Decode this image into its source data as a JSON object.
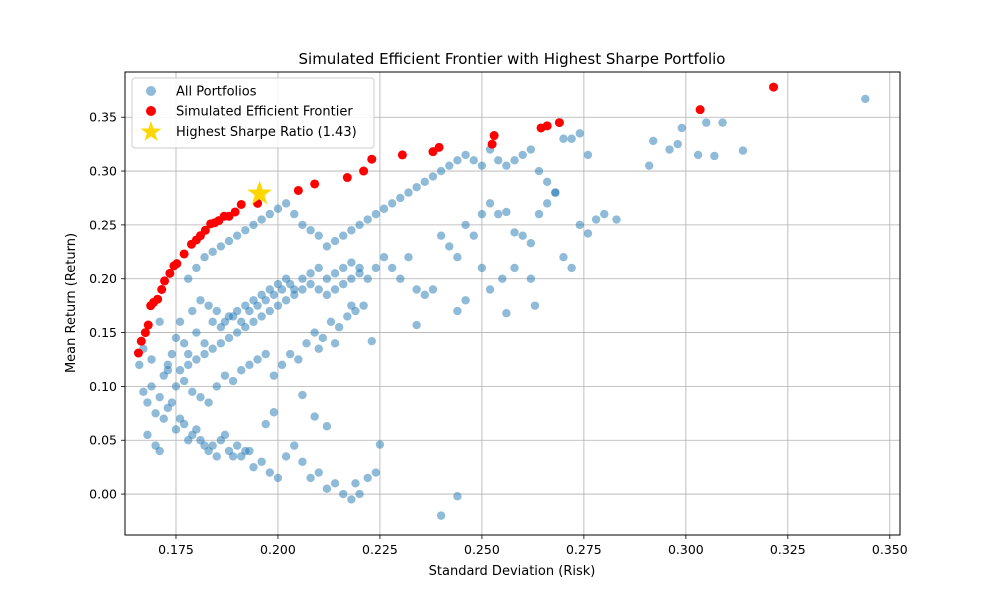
{
  "chart_data": {
    "type": "scatter",
    "title": "Simulated Efficient Frontier with Highest Sharpe Portfolio",
    "xlabel": "Standard Deviation (Risk)",
    "ylabel": "Mean Return (Return)",
    "xlim": [
      0.1625,
      0.3525
    ],
    "ylim": [
      -0.038,
      0.392
    ],
    "x_ticks": [
      0.175,
      0.2,
      0.225,
      0.25,
      0.275,
      0.3,
      0.325,
      0.35
    ],
    "x_tick_labels": [
      "0.175",
      "0.200",
      "0.225",
      "0.250",
      "0.275",
      "0.300",
      "0.325",
      "0.350"
    ],
    "y_ticks": [
      0.0,
      0.05,
      0.1,
      0.15,
      0.2,
      0.25,
      0.3,
      0.35
    ],
    "y_tick_labels": [
      "0.00",
      "0.05",
      "0.10",
      "0.15",
      "0.20",
      "0.25",
      "0.30",
      "0.35"
    ],
    "grid": true,
    "legend_position": "upper-left",
    "colors": {
      "all_portfolios": "#1f77b4",
      "frontier": "#ff0000",
      "max_sharpe": "#ffd700",
      "grid": "#b0b0b0"
    },
    "series": [
      {
        "name": "All Portfolios",
        "marker": "circle",
        "alpha": 0.5,
        "points": [
          [
            0.167,
            0.135
          ],
          [
            0.169,
            0.125
          ],
          [
            0.171,
            0.16
          ],
          [
            0.173,
            0.12
          ],
          [
            0.175,
            0.145
          ],
          [
            0.172,
            0.11
          ],
          [
            0.178,
            0.13
          ],
          [
            0.18,
            0.15
          ],
          [
            0.182,
            0.14
          ],
          [
            0.184,
            0.16
          ],
          [
            0.186,
            0.155
          ],
          [
            0.188,
            0.165
          ],
          [
            0.19,
            0.17
          ],
          [
            0.192,
            0.175
          ],
          [
            0.194,
            0.18
          ],
          [
            0.196,
            0.185
          ],
          [
            0.198,
            0.19
          ],
          [
            0.2,
            0.195
          ],
          [
            0.202,
            0.2
          ],
          [
            0.204,
            0.19
          ],
          [
            0.206,
            0.2
          ],
          [
            0.208,
            0.205
          ],
          [
            0.21,
            0.21
          ],
          [
            0.212,
            0.2
          ],
          [
            0.214,
            0.205
          ],
          [
            0.216,
            0.21
          ],
          [
            0.218,
            0.215
          ],
          [
            0.22,
            0.21
          ],
          [
            0.179,
            0.17
          ],
          [
            0.181,
            0.18
          ],
          [
            0.183,
            0.175
          ],
          [
            0.185,
            0.17
          ],
          [
            0.187,
            0.16
          ],
          [
            0.189,
            0.165
          ],
          [
            0.191,
            0.16
          ],
          [
            0.193,
            0.17
          ],
          [
            0.195,
            0.175
          ],
          [
            0.197,
            0.18
          ],
          [
            0.199,
            0.185
          ],
          [
            0.201,
            0.19
          ],
          [
            0.203,
            0.195
          ],
          [
            0.176,
            0.16
          ],
          [
            0.177,
            0.14
          ],
          [
            0.174,
            0.13
          ],
          [
            0.176,
            0.115
          ],
          [
            0.178,
            0.12
          ],
          [
            0.18,
            0.125
          ],
          [
            0.182,
            0.13
          ],
          [
            0.184,
            0.135
          ],
          [
            0.186,
            0.14
          ],
          [
            0.188,
            0.145
          ],
          [
            0.19,
            0.15
          ],
          [
            0.192,
            0.155
          ],
          [
            0.194,
            0.16
          ],
          [
            0.196,
            0.165
          ],
          [
            0.198,
            0.17
          ],
          [
            0.2,
            0.175
          ],
          [
            0.202,
            0.18
          ],
          [
            0.204,
            0.185
          ],
          [
            0.206,
            0.19
          ],
          [
            0.208,
            0.195
          ],
          [
            0.21,
            0.19
          ],
          [
            0.212,
            0.185
          ],
          [
            0.214,
            0.19
          ],
          [
            0.216,
            0.195
          ],
          [
            0.218,
            0.2
          ],
          [
            0.22,
            0.205
          ],
          [
            0.222,
            0.2
          ],
          [
            0.224,
            0.21
          ],
          [
            0.178,
            0.2
          ],
          [
            0.18,
            0.21
          ],
          [
            0.182,
            0.22
          ],
          [
            0.184,
            0.225
          ],
          [
            0.186,
            0.23
          ],
          [
            0.188,
            0.235
          ],
          [
            0.19,
            0.24
          ],
          [
            0.192,
            0.245
          ],
          [
            0.194,
            0.25
          ],
          [
            0.196,
            0.255
          ],
          [
            0.198,
            0.26
          ],
          [
            0.2,
            0.265
          ],
          [
            0.202,
            0.27
          ],
          [
            0.204,
            0.26
          ],
          [
            0.206,
            0.25
          ],
          [
            0.208,
            0.245
          ],
          [
            0.21,
            0.24
          ],
          [
            0.212,
            0.23
          ],
          [
            0.214,
            0.235
          ],
          [
            0.216,
            0.24
          ],
          [
            0.218,
            0.245
          ],
          [
            0.22,
            0.25
          ],
          [
            0.222,
            0.255
          ],
          [
            0.224,
            0.26
          ],
          [
            0.226,
            0.265
          ],
          [
            0.228,
            0.27
          ],
          [
            0.23,
            0.275
          ],
          [
            0.232,
            0.28
          ],
          [
            0.234,
            0.285
          ],
          [
            0.236,
            0.29
          ],
          [
            0.238,
            0.295
          ],
          [
            0.24,
            0.3
          ],
          [
            0.242,
            0.305
          ],
          [
            0.244,
            0.31
          ],
          [
            0.246,
            0.315
          ],
          [
            0.248,
            0.31
          ],
          [
            0.25,
            0.305
          ],
          [
            0.252,
            0.32
          ],
          [
            0.254,
            0.31
          ],
          [
            0.256,
            0.305
          ],
          [
            0.258,
            0.31
          ],
          [
            0.26,
            0.315
          ],
          [
            0.262,
            0.32
          ],
          [
            0.264,
            0.3
          ],
          [
            0.266,
            0.29
          ],
          [
            0.268,
            0.28
          ],
          [
            0.27,
            0.33
          ],
          [
            0.272,
            0.33
          ],
          [
            0.274,
            0.335
          ],
          [
            0.276,
            0.315
          ],
          [
            0.278,
            0.255
          ],
          [
            0.28,
            0.26
          ],
          [
            0.283,
            0.255
          ],
          [
            0.291,
            0.305
          ],
          [
            0.292,
            0.328
          ],
          [
            0.296,
            0.32
          ],
          [
            0.298,
            0.325
          ],
          [
            0.299,
            0.34
          ],
          [
            0.303,
            0.315
          ],
          [
            0.305,
            0.345
          ],
          [
            0.307,
            0.314
          ],
          [
            0.309,
            0.345
          ],
          [
            0.314,
            0.319
          ],
          [
            0.344,
            0.367
          ],
          [
            0.226,
            0.22
          ],
          [
            0.228,
            0.21
          ],
          [
            0.23,
            0.2
          ],
          [
            0.232,
            0.22
          ],
          [
            0.234,
            0.19
          ],
          [
            0.236,
            0.185
          ],
          [
            0.238,
            0.19
          ],
          [
            0.24,
            0.24
          ],
          [
            0.242,
            0.23
          ],
          [
            0.244,
            0.22
          ],
          [
            0.246,
            0.25
          ],
          [
            0.248,
            0.24
          ],
          [
            0.25,
            0.26
          ],
          [
            0.252,
            0.27
          ],
          [
            0.254,
            0.26
          ],
          [
            0.256,
            0.262
          ],
          [
            0.258,
            0.243
          ],
          [
            0.26,
            0.24
          ],
          [
            0.262,
            0.233
          ],
          [
            0.264,
            0.26
          ],
          [
            0.266,
            0.27
          ],
          [
            0.268,
            0.28
          ],
          [
            0.27,
            0.22
          ],
          [
            0.272,
            0.21
          ],
          [
            0.274,
            0.25
          ],
          [
            0.276,
            0.242
          ],
          [
            0.244,
            0.17
          ],
          [
            0.246,
            0.18
          ],
          [
            0.25,
            0.21
          ],
          [
            0.252,
            0.19
          ],
          [
            0.255,
            0.2
          ],
          [
            0.258,
            0.21
          ],
          [
            0.262,
            0.2
          ],
          [
            0.263,
            0.175
          ],
          [
            0.256,
            0.168
          ],
          [
            0.234,
            0.157
          ],
          [
            0.223,
            0.142
          ],
          [
            0.218,
            0.175
          ],
          [
            0.214,
            0.14
          ],
          [
            0.21,
            0.135
          ],
          [
            0.166,
            0.12
          ],
          [
            0.167,
            0.095
          ],
          [
            0.168,
            0.085
          ],
          [
            0.169,
            0.1
          ],
          [
            0.17,
            0.075
          ],
          [
            0.171,
            0.09
          ],
          [
            0.172,
            0.07
          ],
          [
            0.173,
            0.08
          ],
          [
            0.174,
            0.085
          ],
          [
            0.175,
            0.06
          ],
          [
            0.176,
            0.07
          ],
          [
            0.177,
            0.065
          ],
          [
            0.178,
            0.05
          ],
          [
            0.179,
            0.055
          ],
          [
            0.18,
            0.06
          ],
          [
            0.181,
            0.05
          ],
          [
            0.182,
            0.045
          ],
          [
            0.183,
            0.04
          ],
          [
            0.184,
            0.045
          ],
          [
            0.185,
            0.035
          ],
          [
            0.186,
            0.05
          ],
          [
            0.187,
            0.055
          ],
          [
            0.188,
            0.04
          ],
          [
            0.189,
            0.035
          ],
          [
            0.19,
            0.045
          ],
          [
            0.191,
            0.035
          ],
          [
            0.192,
            0.04
          ],
          [
            0.193,
            0.04
          ],
          [
            0.194,
            0.025
          ],
          [
            0.196,
            0.03
          ],
          [
            0.198,
            0.02
          ],
          [
            0.2,
            0.015
          ],
          [
            0.202,
            0.035
          ],
          [
            0.204,
            0.045
          ],
          [
            0.206,
            0.03
          ],
          [
            0.208,
            0.015
          ],
          [
            0.21,
            0.02
          ],
          [
            0.212,
            0.005
          ],
          [
            0.214,
            0.01
          ],
          [
            0.216,
            0.0
          ],
          [
            0.218,
            -0.005
          ],
          [
            0.219,
            0.01
          ],
          [
            0.22,
            0.0
          ],
          [
            0.222,
            0.015
          ],
          [
            0.224,
            0.02
          ],
          [
            0.225,
            0.046
          ],
          [
            0.212,
            0.063
          ],
          [
            0.209,
            0.072
          ],
          [
            0.206,
            0.092
          ],
          [
            0.199,
            0.076
          ],
          [
            0.197,
            0.065
          ],
          [
            0.24,
            -0.02
          ],
          [
            0.244,
            -0.002
          ],
          [
            0.17,
            0.045
          ],
          [
            0.171,
            0.04
          ],
          [
            0.168,
            0.055
          ],
          [
            0.173,
            0.115
          ],
          [
            0.175,
            0.1
          ],
          [
            0.177,
            0.105
          ],
          [
            0.179,
            0.095
          ],
          [
            0.181,
            0.09
          ],
          [
            0.183,
            0.085
          ],
          [
            0.185,
            0.1
          ],
          [
            0.187,
            0.11
          ],
          [
            0.189,
            0.105
          ],
          [
            0.191,
            0.115
          ],
          [
            0.193,
            0.12
          ],
          [
            0.195,
            0.125
          ],
          [
            0.197,
            0.13
          ],
          [
            0.199,
            0.11
          ],
          [
            0.201,
            0.12
          ],
          [
            0.203,
            0.13
          ],
          [
            0.205,
            0.125
          ],
          [
            0.207,
            0.14
          ],
          [
            0.209,
            0.15
          ],
          [
            0.211,
            0.145
          ],
          [
            0.213,
            0.16
          ],
          [
            0.215,
            0.155
          ],
          [
            0.217,
            0.165
          ],
          [
            0.219,
            0.17
          ],
          [
            0.221,
            0.175
          ]
        ]
      },
      {
        "name": "Simulated Efficient Frontier",
        "marker": "circle",
        "points": [
          [
            0.1658,
            0.131
          ],
          [
            0.1665,
            0.142
          ],
          [
            0.1675,
            0.15
          ],
          [
            0.1682,
            0.157
          ],
          [
            0.1688,
            0.175
          ],
          [
            0.1695,
            0.178
          ],
          [
            0.1705,
            0.181
          ],
          [
            0.1715,
            0.19
          ],
          [
            0.1722,
            0.198
          ],
          [
            0.1735,
            0.205
          ],
          [
            0.1745,
            0.212
          ],
          [
            0.1752,
            0.214
          ],
          [
            0.177,
            0.223
          ],
          [
            0.1788,
            0.232
          ],
          [
            0.18,
            0.236
          ],
          [
            0.181,
            0.24
          ],
          [
            0.1822,
            0.245
          ],
          [
            0.1835,
            0.251
          ],
          [
            0.1845,
            0.252
          ],
          [
            0.1855,
            0.254
          ],
          [
            0.1868,
            0.258
          ],
          [
            0.188,
            0.258
          ],
          [
            0.1895,
            0.262
          ],
          [
            0.191,
            0.269
          ],
          [
            0.195,
            0.27
          ],
          [
            0.205,
            0.282
          ],
          [
            0.209,
            0.288
          ],
          [
            0.217,
            0.294
          ],
          [
            0.221,
            0.3
          ],
          [
            0.223,
            0.311
          ],
          [
            0.2305,
            0.315
          ],
          [
            0.238,
            0.318
          ],
          [
            0.2395,
            0.322
          ],
          [
            0.2525,
            0.325
          ],
          [
            0.253,
            0.333
          ],
          [
            0.2645,
            0.34
          ],
          [
            0.266,
            0.342
          ],
          [
            0.269,
            0.345
          ],
          [
            0.3035,
            0.357
          ],
          [
            0.3215,
            0.378
          ]
        ]
      },
      {
        "name": "Highest Sharpe Ratio (1.43)",
        "marker": "star",
        "points": [
          [
            0.1955,
            0.279
          ]
        ]
      }
    ]
  }
}
